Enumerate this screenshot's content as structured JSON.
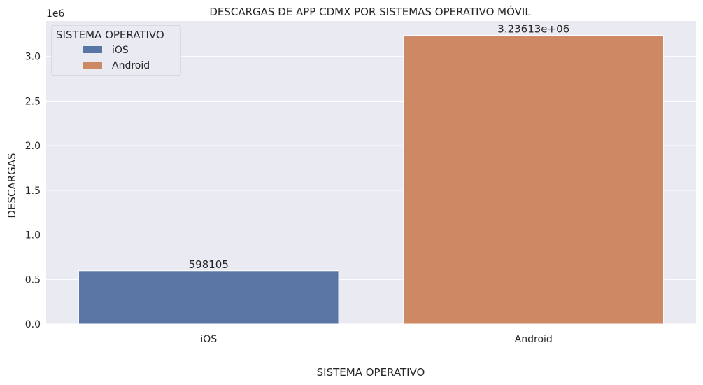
{
  "chart_data": {
    "type": "bar",
    "title": "DESCARGAS DE APP CDMX POR SISTEMAS OPERATIVO MÓVIL",
    "xlabel": "SISTEMA OPERATIVO",
    "ylabel": "DESCARGAS",
    "y_offset_label": "1e6",
    "categories": [
      "iOS",
      "Android"
    ],
    "values": [
      598105,
      3236130
    ],
    "bar_labels": [
      "598105",
      "3.23613e+06"
    ],
    "colors": [
      "#5875a4",
      "#cc8963"
    ],
    "ylim": [
      0,
      3398000
    ],
    "yticks": [
      0,
      500000,
      1000000,
      1500000,
      2000000,
      2500000,
      3000000
    ],
    "ytick_labels": [
      "0.0",
      "0.5",
      "1.0",
      "1.5",
      "2.0",
      "2.5",
      "3.0"
    ],
    "grid": true,
    "legend": {
      "title": "SISTEMA OPERATIVO",
      "position": "top-left",
      "entries": [
        "iOS",
        "Android"
      ]
    }
  }
}
